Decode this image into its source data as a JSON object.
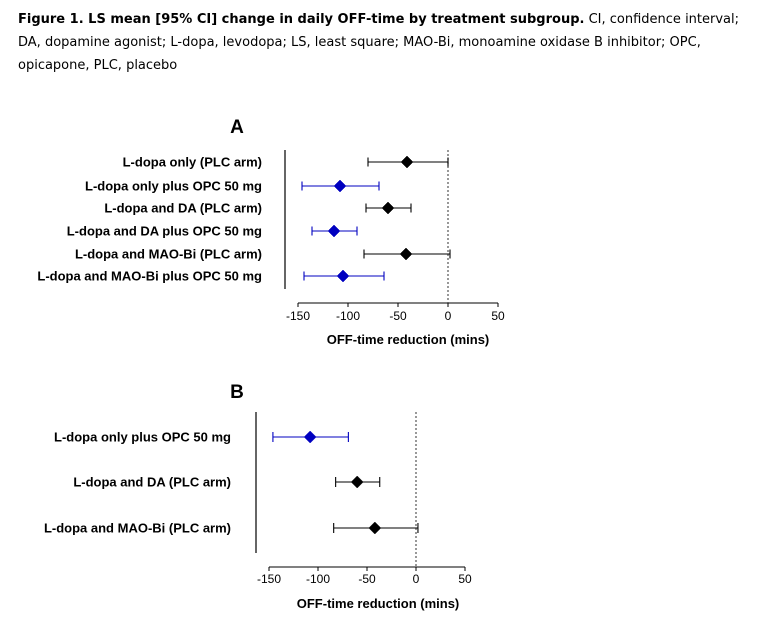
{
  "caption": {
    "title": "Figure 1. LS mean [95% CI] change in daily OFF-time by treatment subgroup.",
    "text": "CI, confidence interval; DA, dopamine agonist; L-dopa, levodopa; LS, least square; MAO-Bi, monoamine oxidase B inhibitor; OPC, opicapone, PLC, placebo"
  },
  "chart_data": [
    {
      "type": "forest",
      "panel_label": "A",
      "xlabel": "OFF-time reduction (mins)",
      "xlim": [
        -150,
        50
      ],
      "xticks": [
        -150,
        -100,
        -50,
        0,
        50
      ],
      "reference_line": 0,
      "rows": [
        {
          "label": "L-dopa only (PLC arm)",
          "estimate": -41,
          "lower": -80,
          "upper": 0,
          "color": "#000000"
        },
        {
          "label": "L-dopa only plus OPC 50 mg",
          "estimate": -108,
          "lower": -146,
          "upper": -69,
          "color": "#0000c0"
        },
        {
          "label": "L-dopa and DA (PLC arm)",
          "estimate": -60,
          "lower": -82,
          "upper": -37,
          "color": "#000000"
        },
        {
          "label": "L-dopa and DA plus OPC 50 mg",
          "estimate": -114,
          "lower": -136,
          "upper": -91,
          "color": "#0000c0"
        },
        {
          "label": "L-dopa and MAO-Bi (PLC arm)",
          "estimate": -42,
          "lower": -84,
          "upper": 2,
          "color": "#000000"
        },
        {
          "label": "L-dopa and MAO-Bi plus OPC 50 mg",
          "estimate": -105,
          "lower": -144,
          "upper": -64,
          "color": "#0000c0"
        }
      ]
    },
    {
      "type": "forest",
      "panel_label": "B",
      "xlabel": "OFF-time reduction (mins)",
      "xlim": [
        -150,
        50
      ],
      "xticks": [
        -150,
        -100,
        -50,
        0,
        50
      ],
      "reference_line": 0,
      "rows": [
        {
          "label": "L-dopa only plus OPC 50 mg",
          "estimate": -108,
          "lower": -146,
          "upper": -69,
          "color": "#0000c0"
        },
        {
          "label": "L-dopa and DA (PLC arm)",
          "estimate": -60,
          "lower": -82,
          "upper": -37,
          "color": "#000000"
        },
        {
          "label": "L-dopa and MAO-Bi (PLC arm)",
          "estimate": -42,
          "lower": -84,
          "upper": 2,
          "color": "#000000"
        }
      ]
    }
  ]
}
